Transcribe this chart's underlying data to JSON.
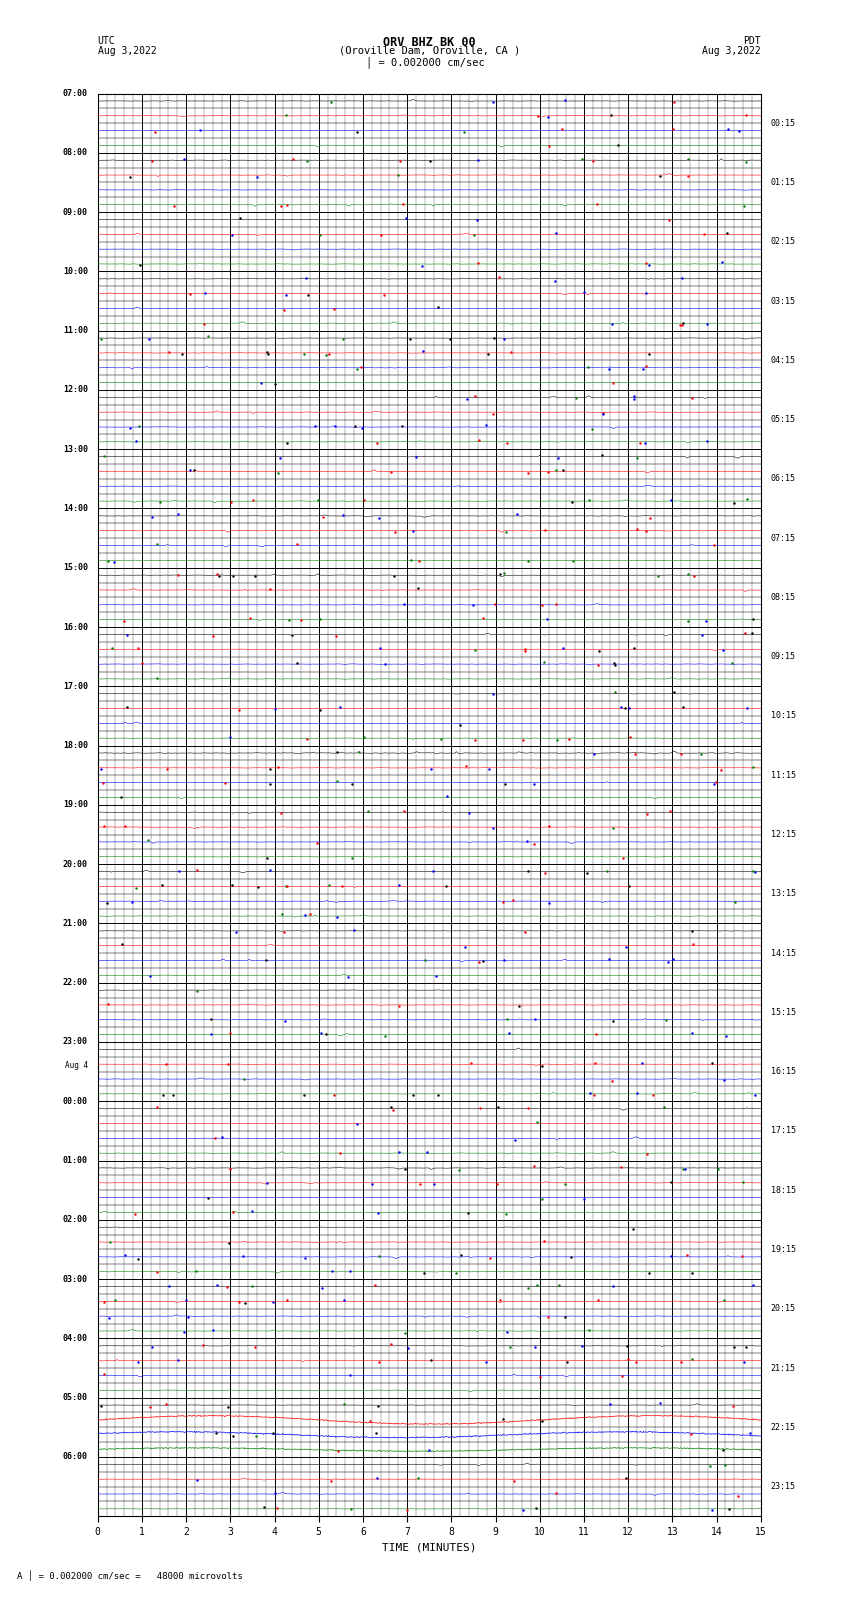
{
  "title_line1": "ORV BHZ BK 00",
  "title_line2": "(Oroville Dam, Oroville, CA )",
  "title_line3": "I = 0.002000 cm/sec",
  "left_label": "UTC",
  "right_label": "PDT",
  "date_left": "Aug 3,2022",
  "date_right": "Aug 3,2022",
  "xlabel": "TIME (MINUTES)",
  "footer": "A │ = 0.002000 cm/sec =   48000 microvolts",
  "left_times": [
    "07:00",
    "08:00",
    "09:00",
    "10:00",
    "11:00",
    "12:00",
    "13:00",
    "14:00",
    "15:00",
    "16:00",
    "17:00",
    "18:00",
    "19:00",
    "20:00",
    "21:00",
    "22:00",
    "23:00",
    "Aug 4",
    "00:00",
    "01:00",
    "02:00",
    "03:00",
    "04:00",
    "05:00",
    "06:00"
  ],
  "left_times_is_date": [
    false,
    false,
    false,
    false,
    false,
    false,
    false,
    false,
    false,
    false,
    false,
    false,
    false,
    false,
    false,
    false,
    false,
    true,
    false,
    false,
    false,
    false,
    false,
    false,
    false
  ],
  "right_times": [
    "00:15",
    "01:15",
    "02:15",
    "03:15",
    "04:15",
    "05:15",
    "06:15",
    "07:15",
    "08:15",
    "09:15",
    "10:15",
    "11:15",
    "12:15",
    "13:15",
    "14:15",
    "15:15",
    "16:15",
    "17:15",
    "18:15",
    "19:15",
    "20:15",
    "21:15",
    "22:15",
    "23:15"
  ],
  "n_hours": 24,
  "subrows_per_hour": 4,
  "x_min": 0,
  "x_max": 15,
  "x_ticks": [
    0,
    1,
    2,
    3,
    4,
    5,
    6,
    7,
    8,
    9,
    10,
    11,
    12,
    13,
    14,
    15
  ],
  "bg_color": "#ffffff",
  "special_hour_black": 22,
  "special_hour_colored": 23,
  "sinusoidal_freq": 1.5,
  "sinusoidal_amp": 0.28
}
